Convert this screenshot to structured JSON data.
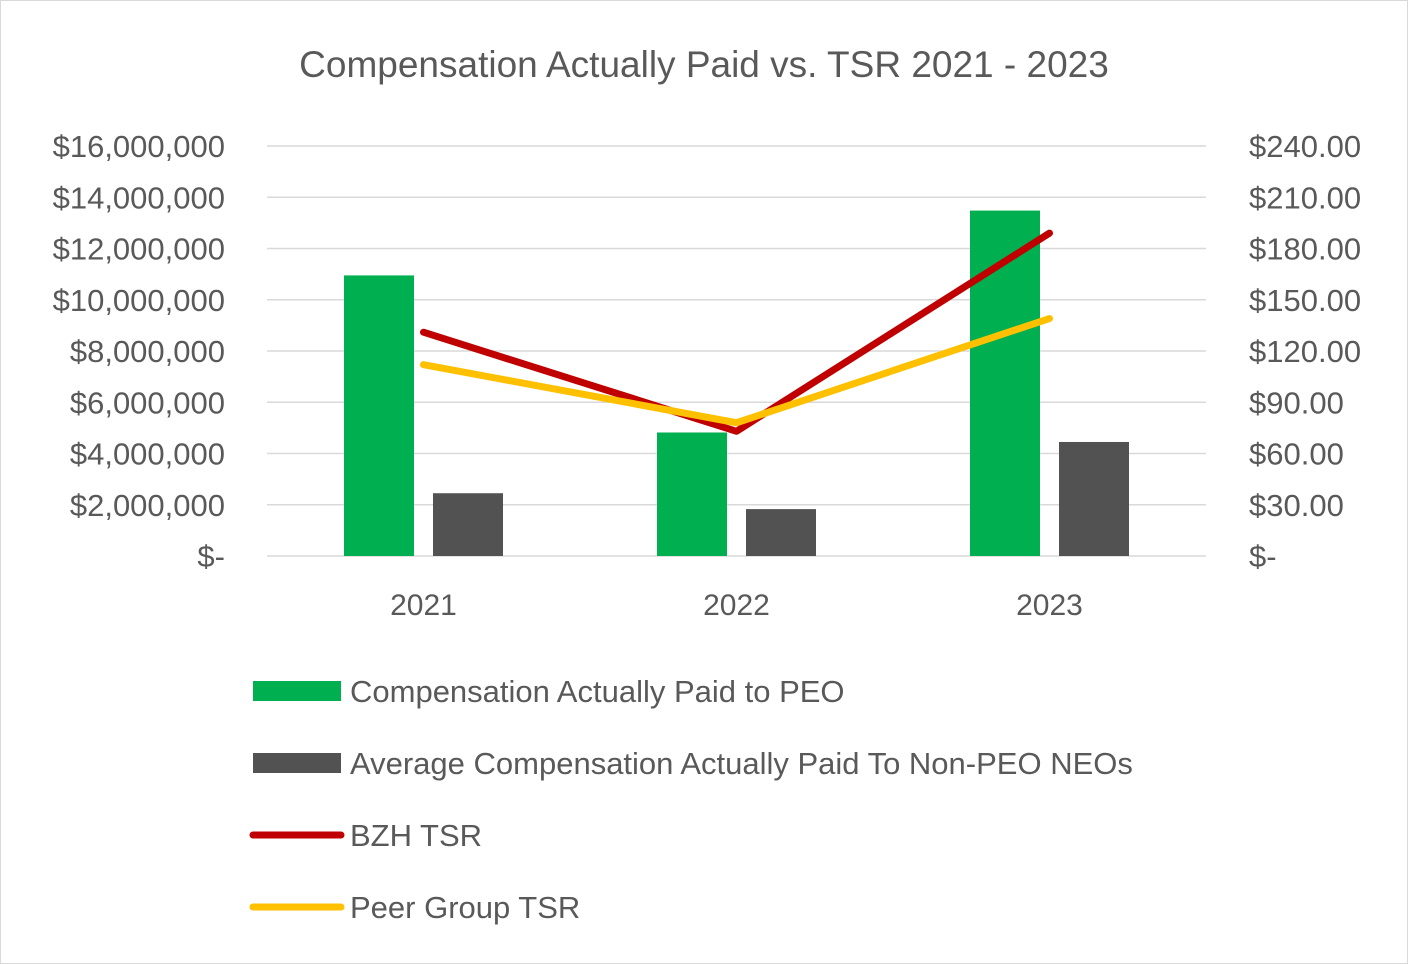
{
  "chart_data": {
    "type": "bar",
    "title": "Compensation Actually Paid vs. TSR 2021 - 2023",
    "categories": [
      "2021",
      "2022",
      "2023"
    ],
    "y_left": {
      "ylim": [
        0,
        16000000
      ],
      "ticks": [
        0,
        2000000,
        4000000,
        6000000,
        8000000,
        10000000,
        12000000,
        14000000,
        16000000
      ],
      "tick_labels": [
        "$-",
        "$2,000,000",
        "$4,000,000",
        "$6,000,000",
        "$8,000,000",
        "$10,000,000",
        "$12,000,000",
        "$14,000,000",
        "$16,000,000"
      ]
    },
    "y_right": {
      "ylim": [
        0,
        240
      ],
      "ticks": [
        0,
        30,
        60,
        90,
        120,
        150,
        180,
        210,
        240
      ],
      "tick_labels": [
        "$-",
        "$30.00",
        "$60.00",
        "$90.00",
        "$120.00",
        "$150.00",
        "$180.00",
        "$210.00",
        "$240.00"
      ]
    },
    "grid": true,
    "legend_position": "bottom",
    "series": [
      {
        "name": "Compensation Actually Paid to PEO",
        "kind": "bar",
        "axis": "left",
        "color": "#00b050",
        "values": [
          10950000,
          4820000,
          13480000
        ]
      },
      {
        "name": "Average Compensation Actually Paid To Non-PEO NEOs",
        "kind": "bar",
        "axis": "left",
        "color": "#525252",
        "values": [
          2450000,
          1830000,
          4450000
        ]
      },
      {
        "name": "BZH TSR",
        "kind": "line",
        "axis": "right",
        "color": "#c00000",
        "values": [
          131,
          73,
          189
        ]
      },
      {
        "name": "Peer Group TSR",
        "kind": "line",
        "axis": "right",
        "color": "#ffc000",
        "values": [
          112,
          78,
          139
        ]
      }
    ]
  }
}
